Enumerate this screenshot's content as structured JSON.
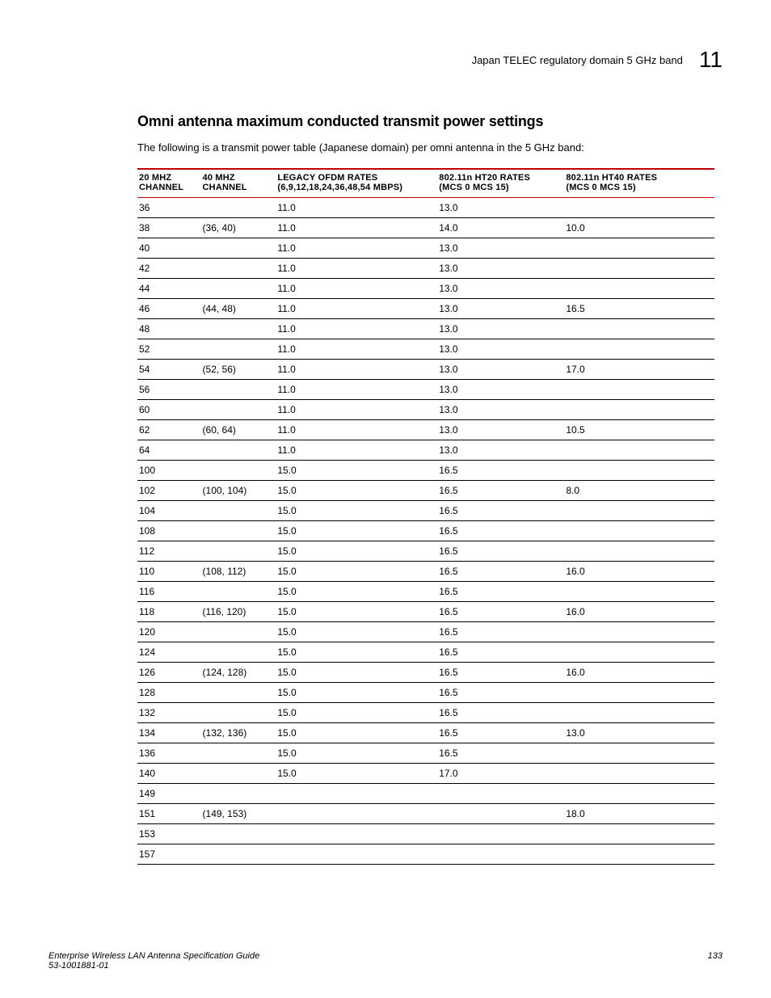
{
  "header": {
    "label": "Japan TELEC regulatory domain 5 GHz band",
    "chapter": "11"
  },
  "section": {
    "title": "Omni antenna maximum conducted transmit power settings",
    "intro": "The following is a transmit power table (Japanese domain) per omni antenna in the 5 GHz band:"
  },
  "table": {
    "columns": [
      {
        "line1": "20 MHZ",
        "line2": "CHANNEL"
      },
      {
        "line1": "40 MHZ",
        "line2": "CHANNEL"
      },
      {
        "line1": "LEGACY OFDM RATES",
        "line2": "(6,9,12,18,24,36,48,54 MBPS)"
      },
      {
        "line1": "802.11n HT20 RATES",
        "line2": "(MCS 0  MCS 15)"
      },
      {
        "line1": "802.11n HT40 RATES",
        "line2": "(MCS 0  MCS 15)"
      }
    ],
    "rows": [
      [
        "36",
        "",
        "11.0",
        "13.0",
        ""
      ],
      [
        "38",
        "(36, 40)",
        "11.0",
        "14.0",
        "10.0"
      ],
      [
        "40",
        "",
        "11.0",
        "13.0",
        ""
      ],
      [
        "42",
        "",
        "11.0",
        "13.0",
        ""
      ],
      [
        "44",
        "",
        "11.0",
        "13.0",
        ""
      ],
      [
        "46",
        "(44, 48)",
        "11.0",
        "13.0",
        "16.5"
      ],
      [
        "48",
        "",
        "11.0",
        "13.0",
        ""
      ],
      [
        "52",
        "",
        "11.0",
        "13.0",
        ""
      ],
      [
        "54",
        "(52, 56)",
        "11.0",
        "13.0",
        "17.0"
      ],
      [
        "56",
        "",
        "11.0",
        "13.0",
        ""
      ],
      [
        "60",
        "",
        "11.0",
        "13.0",
        ""
      ],
      [
        "62",
        "(60, 64)",
        "11.0",
        "13.0",
        "10.5"
      ],
      [
        "64",
        "",
        "11.0",
        "13.0",
        ""
      ],
      [
        "100",
        "",
        "15.0",
        "16.5",
        ""
      ],
      [
        "102",
        "(100, 104)",
        "15.0",
        "16.5",
        "8.0"
      ],
      [
        "104",
        "",
        "15.0",
        "16.5",
        ""
      ],
      [
        "108",
        "",
        "15.0",
        "16.5",
        ""
      ],
      [
        "112",
        "",
        "15.0",
        "16.5",
        ""
      ],
      [
        "110",
        "(108, 112)",
        "15.0",
        "16.5",
        "16.0"
      ],
      [
        "116",
        "",
        "15.0",
        "16.5",
        ""
      ],
      [
        "118",
        "(116, 120)",
        "15.0",
        "16.5",
        "16.0"
      ],
      [
        "120",
        "",
        "15.0",
        "16.5",
        ""
      ],
      [
        "124",
        "",
        "15.0",
        "16.5",
        ""
      ],
      [
        "126",
        "(124, 128)",
        "15.0",
        "16.5",
        "16.0"
      ],
      [
        "128",
        "",
        "15.0",
        "16.5",
        ""
      ],
      [
        "132",
        "",
        "15.0",
        "16.5",
        ""
      ],
      [
        "134",
        "(132, 136)",
        "15.0",
        "16.5",
        "13.0"
      ],
      [
        "136",
        "",
        "15.0",
        "16.5",
        ""
      ],
      [
        "140",
        "",
        "15.0",
        "17.0",
        ""
      ],
      [
        "149",
        "",
        "",
        "",
        ""
      ],
      [
        "151",
        "(149, 153)",
        "",
        "",
        "18.0"
      ],
      [
        "153",
        "",
        "",
        "",
        ""
      ],
      [
        "157",
        "",
        "",
        "",
        ""
      ]
    ]
  },
  "footer": {
    "title": "Enterprise Wireless LAN Antenna Specification Guide",
    "docnum": "53-1001881-01",
    "page": "133"
  },
  "style": {
    "header_rule_color": "#c00000",
    "row_rule_color": "#000000",
    "heading_font": "Arial Narrow",
    "body_font": "Arial"
  }
}
